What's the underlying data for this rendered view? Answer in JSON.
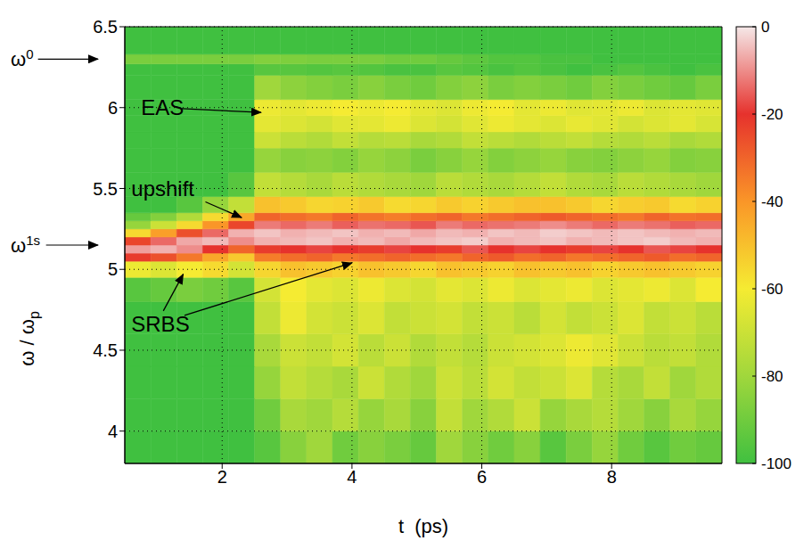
{
  "chart_data": {
    "type": "heatmap",
    "xlabel": "t  (ps)",
    "ylabel": {
      "text": "ω / ω",
      "subscript": "p"
    },
    "xlim": [
      0.5,
      9.7
    ],
    "xticks": [
      2,
      4,
      6,
      8
    ],
    "ylim": [
      3.8,
      6.5
    ],
    "yticks": [
      4,
      4.5,
      5,
      5.5,
      6,
      6.5
    ],
    "grid": true,
    "heatmap": {
      "x_bins": [
        0.5,
        0.9,
        1.3,
        1.7,
        2.1,
        2.5,
        2.9,
        3.3,
        3.7,
        4.1,
        4.5,
        4.9,
        5.3,
        5.7,
        6.1,
        6.5,
        6.9,
        7.3,
        7.7,
        8.1,
        8.5,
        8.9,
        9.3,
        9.7
      ],
      "y_bins": [
        3.8,
        4.0,
        4.2,
        4.4,
        4.6,
        4.8,
        4.95,
        5.05,
        5.1,
        5.15,
        5.2,
        5.25,
        5.3,
        5.35,
        5.45,
        5.6,
        5.75,
        5.85,
        5.95,
        6.05,
        6.2,
        6.27,
        6.33,
        6.5
      ],
      "cells": [
        [
          -100,
          -100,
          -100,
          -100,
          -100,
          -95,
          -85,
          -80,
          -90,
          -85,
          -88,
          -92,
          -80,
          -85,
          -90,
          -85,
          -95,
          -88,
          -82,
          -90,
          -95,
          -90,
          -92
        ],
        [
          -100,
          -100,
          -100,
          -100,
          -100,
          -90,
          -78,
          -80,
          -75,
          -82,
          -78,
          -85,
          -72,
          -80,
          -76,
          -70,
          -82,
          -78,
          -75,
          -80,
          -85,
          -78,
          -82
        ],
        [
          -100,
          -100,
          -100,
          -100,
          -100,
          -82,
          -72,
          -75,
          -78,
          -70,
          -76,
          -80,
          -70,
          -74,
          -68,
          -72,
          -70,
          -66,
          -75,
          -78,
          -72,
          -80,
          -76
        ],
        [
          -100,
          -100,
          -100,
          -100,
          -100,
          -78,
          -70,
          -72,
          -68,
          -74,
          -70,
          -76,
          -72,
          -75,
          -70,
          -68,
          -66,
          -62,
          -65,
          -70,
          -74,
          -72,
          -76
        ],
        [
          -100,
          -100,
          -100,
          -100,
          -100,
          -72,
          -62,
          -68,
          -70,
          -66,
          -72,
          -70,
          -68,
          -72,
          -70,
          -74,
          -68,
          -72,
          -70,
          -66,
          -72,
          -70,
          -74
        ],
        [
          -95,
          -92,
          -88,
          -90,
          -95,
          -68,
          -60,
          -64,
          -66,
          -62,
          -66,
          -68,
          -64,
          -66,
          -62,
          -66,
          -64,
          -62,
          -66,
          -64,
          -62,
          -66,
          -60
        ],
        [
          -62,
          -66,
          -60,
          -56,
          -68,
          -55,
          -50,
          -52,
          -54,
          -50,
          -52,
          -55,
          -50,
          -52,
          -54,
          -50,
          -52,
          -50,
          -54,
          -52,
          -50,
          -52,
          -54
        ],
        [
          -22,
          -26,
          -34,
          -44,
          -52,
          -35,
          -32,
          -30,
          -34,
          -32,
          -30,
          -32,
          -34,
          -30,
          -28,
          -32,
          -30,
          -34,
          -32,
          -30,
          -28,
          -32,
          -30
        ],
        [
          -8,
          -6,
          -10,
          -20,
          -30,
          -22,
          -20,
          -18,
          -20,
          -22,
          -18,
          -20,
          -22,
          -16,
          -20,
          -18,
          -20,
          -22,
          -18,
          -20,
          -16,
          -18,
          -20
        ],
        [
          -24,
          -14,
          -7,
          -5,
          -10,
          -6,
          -5,
          -4,
          -6,
          -5,
          -7,
          -5,
          -4,
          -3,
          -6,
          -5,
          -4,
          -6,
          -5,
          -4,
          -3,
          -5,
          -6
        ],
        [
          -56,
          -42,
          -26,
          -14,
          -6,
          -4,
          -6,
          -5,
          -4,
          -6,
          -5,
          -7,
          -5,
          -6,
          -4,
          -5,
          -3,
          -4,
          -5,
          -4,
          -5,
          -6,
          -5
        ],
        [
          -82,
          -70,
          -56,
          -40,
          -24,
          -12,
          -14,
          -12,
          -15,
          -13,
          -14,
          -16,
          -12,
          -14,
          -13,
          -12,
          -10,
          -12,
          -14,
          -12,
          -13,
          -15,
          -14
        ],
        [
          -92,
          -86,
          -76,
          -56,
          -44,
          -30,
          -32,
          -34,
          -30,
          -33,
          -35,
          -32,
          -30,
          -34,
          -32,
          -30,
          -28,
          -30,
          -32,
          -34,
          -30,
          -33,
          -32
        ],
        [
          -100,
          -100,
          -95,
          -82,
          -72,
          -50,
          -52,
          -55,
          -54,
          -52,
          -56,
          -55,
          -52,
          -54,
          -52,
          -50,
          -50,
          -52,
          -55,
          -53,
          -52,
          -56,
          -54
        ],
        [
          -100,
          -100,
          -100,
          -100,
          -95,
          -72,
          -75,
          -78,
          -74,
          -76,
          -78,
          -80,
          -74,
          -76,
          -78,
          -75,
          -72,
          -76,
          -78,
          -74,
          -76,
          -78,
          -80
        ],
        [
          -100,
          -100,
          -100,
          -100,
          -100,
          -82,
          -85,
          -84,
          -86,
          -82,
          -84,
          -88,
          -85,
          -82,
          -86,
          -84,
          -82,
          -85,
          -86,
          -84,
          -82,
          -86,
          -85
        ],
        [
          -100,
          -100,
          -100,
          -100,
          -100,
          -70,
          -74,
          -76,
          -72,
          -75,
          -74,
          -78,
          -76,
          -72,
          -74,
          -76,
          -74,
          -72,
          -75,
          -76,
          -74,
          -78,
          -76
        ],
        [
          -100,
          -100,
          -100,
          -100,
          -100,
          -64,
          -66,
          -68,
          -65,
          -64,
          -62,
          -66,
          -68,
          -65,
          -62,
          -64,
          -66,
          -63,
          -65,
          -68,
          -66,
          -64,
          -67
        ],
        [
          -100,
          -100,
          -100,
          -100,
          -100,
          -62,
          -64,
          -62,
          -60,
          -62,
          -60,
          -64,
          -66,
          -62,
          -60,
          -64,
          -62,
          -65,
          -64,
          -62,
          -66,
          -64,
          -65
        ],
        [
          -100,
          -100,
          -100,
          -100,
          -100,
          -80,
          -84,
          -86,
          -88,
          -85,
          -88,
          -90,
          -86,
          -84,
          -88,
          -86,
          -88,
          -90,
          -86,
          -88,
          -90,
          -92,
          -88
        ],
        [
          -100,
          -100,
          -100,
          -100,
          -100,
          -95,
          -95,
          -96,
          -95,
          -96,
          -98,
          -98,
          -95,
          -96,
          -98,
          -96,
          -98,
          -100,
          -98,
          -96,
          -98,
          -100,
          -98
        ],
        [
          -88,
          -88,
          -88,
          -88,
          -88,
          -86,
          -87,
          -88,
          -88,
          -88,
          -90,
          -90,
          -92,
          -94,
          -96,
          -96,
          -98,
          -98,
          -100,
          -100,
          -100,
          -100,
          -100
        ],
        [
          -100,
          -100,
          -100,
          -100,
          -100,
          -100,
          -100,
          -100,
          -100,
          -100,
          -100,
          -100,
          -100,
          -100,
          -100,
          -100,
          -100,
          -100,
          -100,
          -100,
          -100,
          -100,
          -100
        ]
      ],
      "colorbar_range": [
        -100,
        0
      ],
      "colorbar_ticks": [
        0,
        -20,
        -40,
        -60,
        -80,
        -100
      ]
    },
    "markers": [
      {
        "text": "ω",
        "subscript": "0",
        "value": 6.3
      },
      {
        "text": "ω",
        "subscript": "1s",
        "value": 5.15
      }
    ],
    "annotations": [
      {
        "text": "EAS",
        "x": 0.75,
        "y": 6.0,
        "arrow_to": [
          [
            2.6,
            5.97
          ]
        ]
      },
      {
        "text": "upshift",
        "x": 0.6,
        "y": 5.5,
        "arrow_to": [
          [
            2.3,
            5.32
          ]
        ]
      },
      {
        "text": "SRBS",
        "x": 0.6,
        "y": 4.66,
        "arrow_to": [
          [
            1.4,
            4.97
          ],
          [
            4.0,
            5.04
          ]
        ]
      }
    ]
  }
}
